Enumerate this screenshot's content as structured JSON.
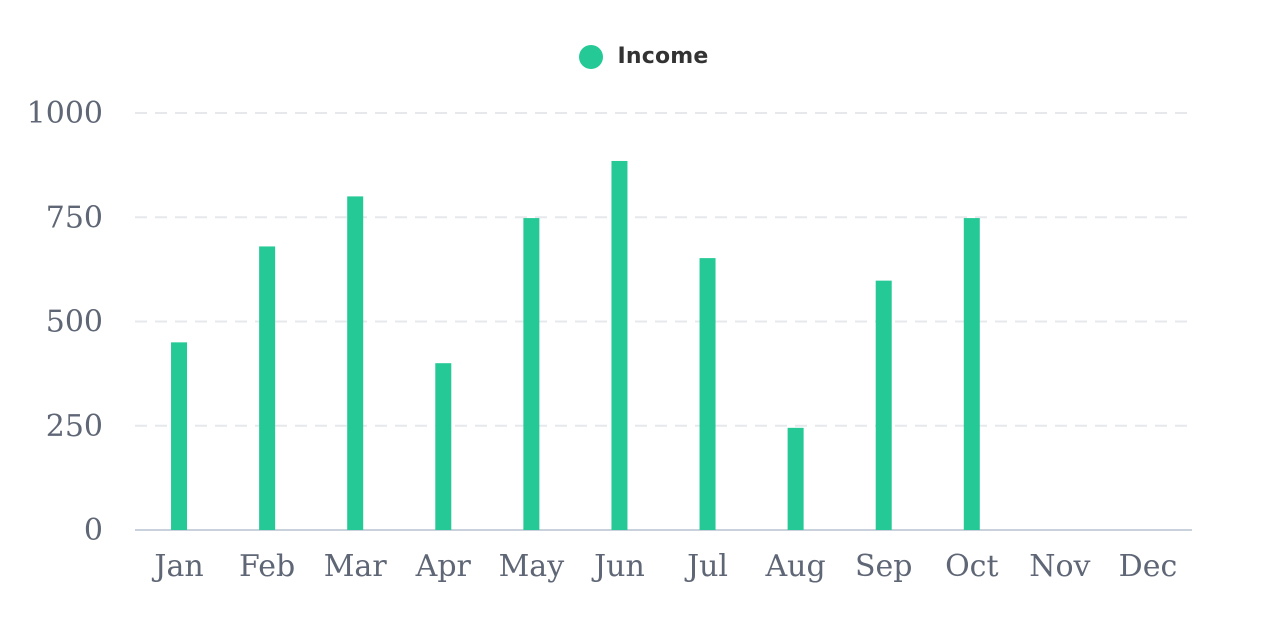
{
  "chart_data": {
    "type": "bar",
    "title": "",
    "xlabel": "",
    "ylabel": "",
    "categories": [
      "Jan",
      "Feb",
      "Mar",
      "Apr",
      "May",
      "Jun",
      "Jul",
      "Aug",
      "Sep",
      "Oct",
      "Nov",
      "Dec"
    ],
    "series": [
      {
        "name": "Income",
        "color": "#24c995",
        "values": [
          450,
          680,
          800,
          400,
          748,
          885,
          652,
          245,
          598,
          748,
          null,
          null
        ]
      }
    ],
    "ylim": [
      0,
      1000
    ],
    "yticks": [
      0,
      250,
      500,
      750,
      1000
    ],
    "grid": true,
    "legend": "top-center"
  },
  "colors": {
    "bar": "#24c995",
    "grid": "#e6e8ec",
    "axis": "#c9d1dc",
    "tick_text": "#5f6675",
    "legend_text": "#333333"
  }
}
